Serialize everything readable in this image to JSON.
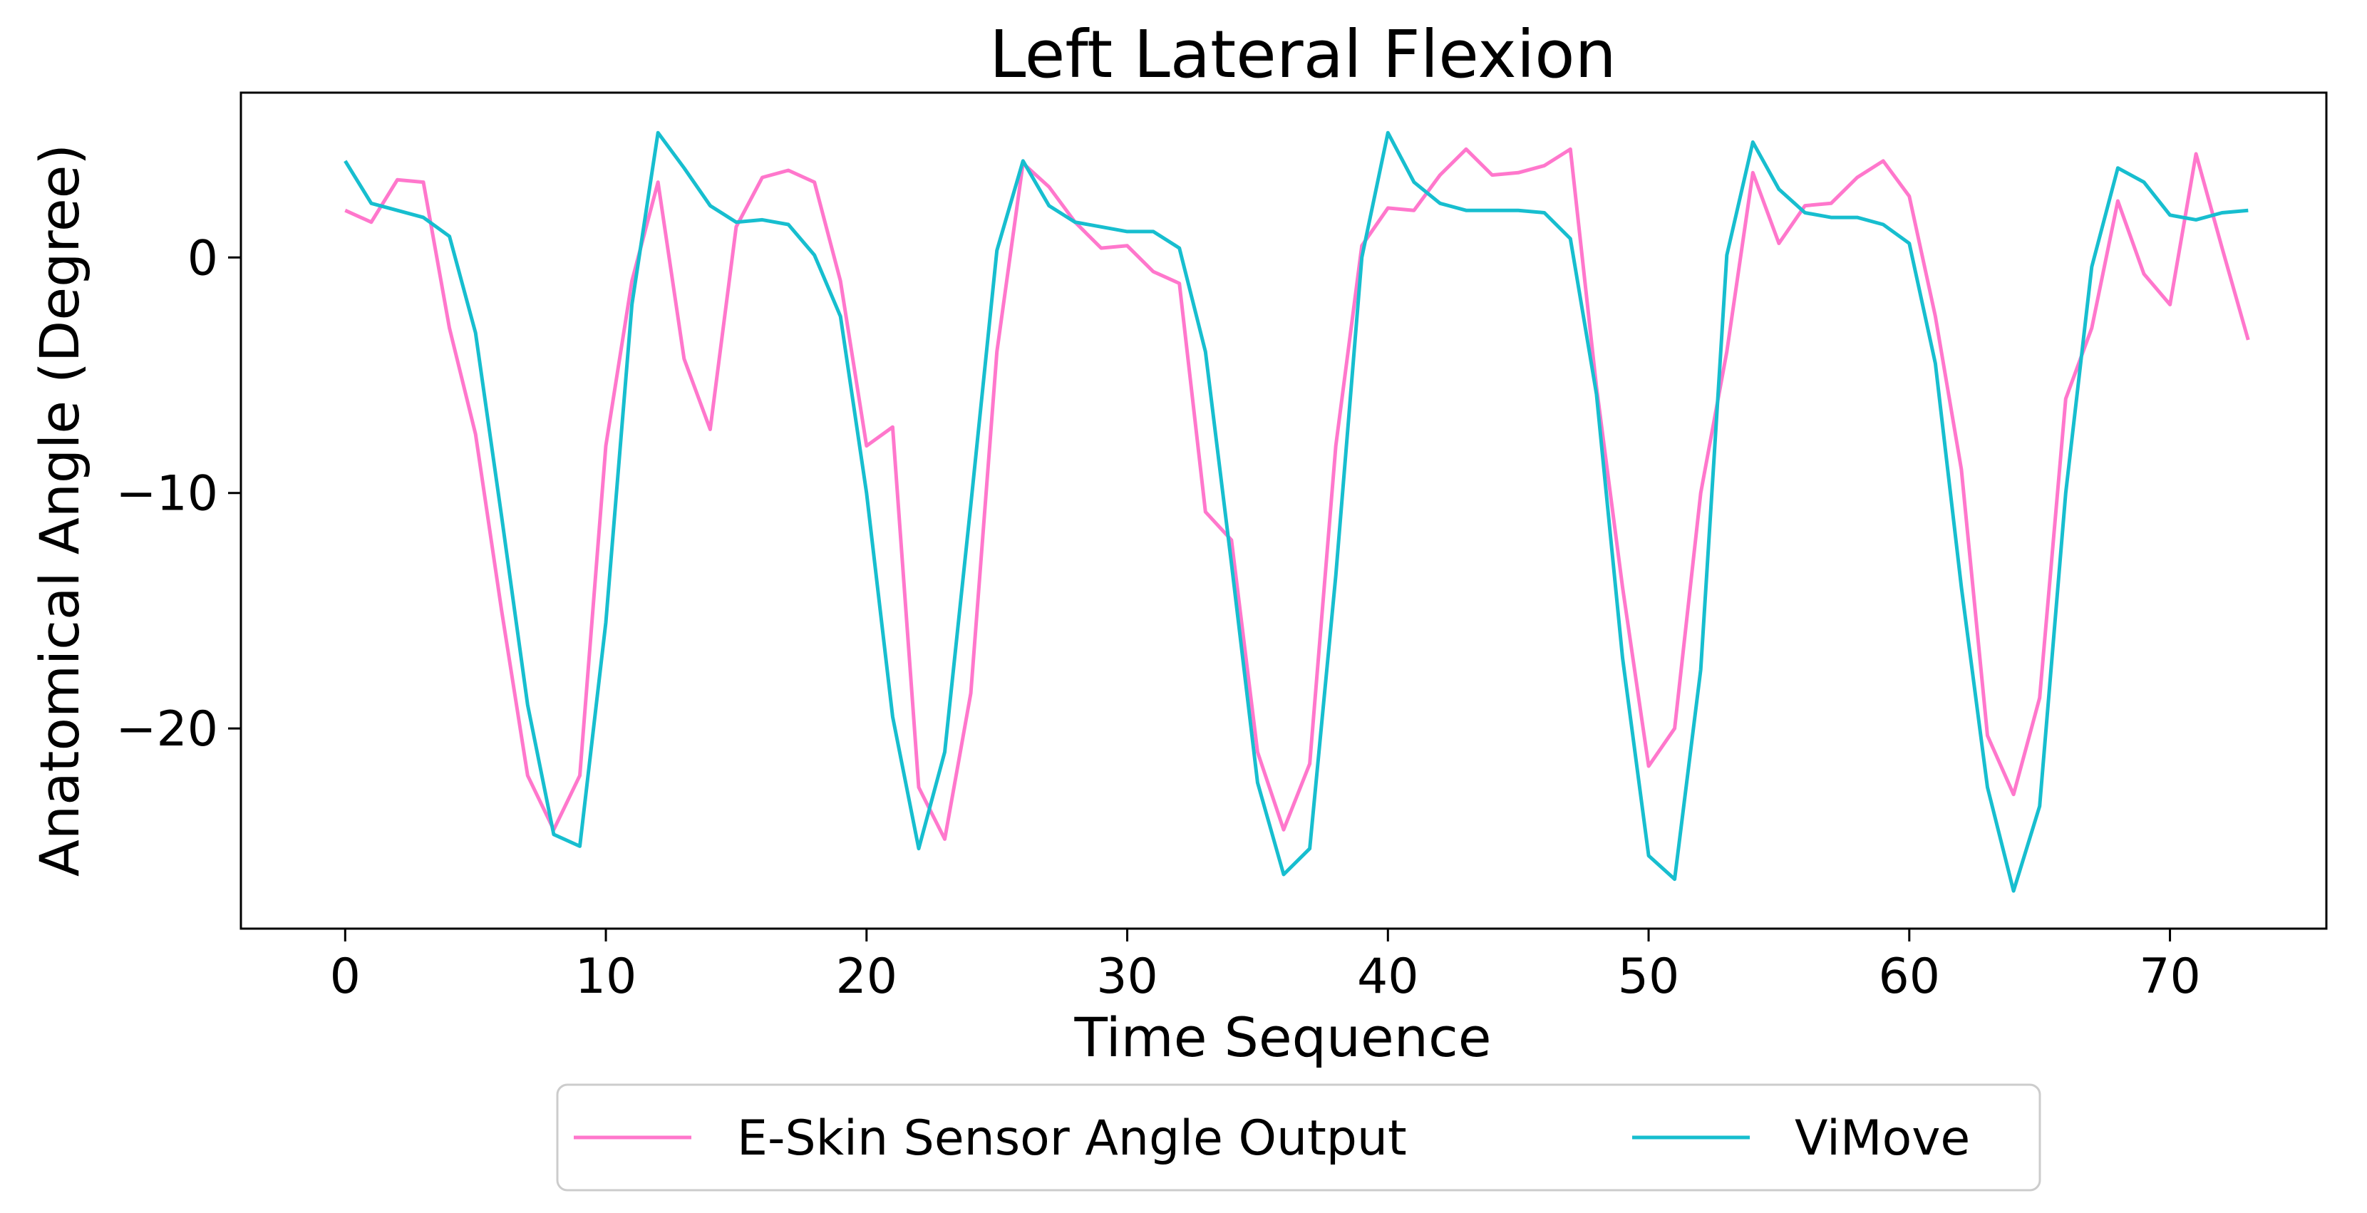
{
  "chart_data": {
    "type": "line",
    "title": "Left Lateral Flexion",
    "xlabel": "Time Sequence",
    "ylabel": "Anatomical Angle (Degree)",
    "xlim": [
      -4,
      76
    ],
    "ylim": [
      -28.5,
      7
    ],
    "xticks": [
      0,
      10,
      20,
      30,
      40,
      50,
      60,
      70
    ],
    "yticks": [
      -20,
      -10,
      0
    ],
    "ytick_labels": [
      "−20",
      "−10",
      "0"
    ],
    "grid": false,
    "legend": {
      "placement": "bottom-center-outside",
      "ncol": 2
    },
    "series": [
      {
        "name": "E-Skin Sensor Angle Output",
        "color": "#ff77cc",
        "x": [
          0,
          1,
          2,
          3,
          4,
          5,
          6,
          7,
          8,
          9,
          10,
          11,
          12,
          13,
          14,
          15,
          16,
          17,
          18,
          19,
          20,
          21,
          22,
          23,
          24,
          25,
          26,
          27,
          28,
          29,
          30,
          31,
          32,
          33,
          34,
          35,
          36,
          37,
          38,
          39,
          40,
          41,
          42,
          43,
          44,
          45,
          46,
          47,
          48,
          49,
          50,
          51,
          52,
          53,
          54,
          55,
          56,
          57,
          58,
          59,
          60,
          61,
          62,
          63,
          64,
          65,
          66,
          67,
          68,
          69,
          70,
          71,
          72,
          73
        ],
        "values": [
          2.0,
          1.5,
          3.3,
          3.2,
          -3.0,
          -7.5,
          -15.0,
          -22.0,
          -24.3,
          -22.0,
          -8.0,
          -1.0,
          3.2,
          -4.3,
          -7.3,
          1.3,
          3.4,
          3.7,
          3.2,
          -1.0,
          -8.0,
          -7.2,
          -22.5,
          -24.7,
          -18.5,
          -4.0,
          4.0,
          3.0,
          1.5,
          0.4,
          0.5,
          -0.6,
          -1.1,
          -10.8,
          -12.0,
          -21.0,
          -24.3,
          -21.5,
          -8.0,
          0.5,
          2.1,
          2.0,
          3.5,
          4.6,
          3.5,
          3.6,
          3.9,
          4.6,
          -5.5,
          -14.0,
          -21.6,
          -20.0,
          -10.0,
          -4.0,
          3.6,
          0.6,
          2.2,
          2.3,
          3.4,
          4.1,
          2.6,
          -2.5,
          -9.0,
          -20.3,
          -22.8,
          -18.7,
          -6.0,
          -3.0,
          2.4,
          -0.7,
          -2.0,
          4.4,
          0.4,
          -3.5
        ]
      },
      {
        "name": "ViMove",
        "color": "#17becf",
        "x": [
          0,
          1,
          2,
          3,
          4,
          5,
          6,
          7,
          8,
          9,
          10,
          11,
          12,
          13,
          14,
          15,
          16,
          17,
          18,
          19,
          20,
          21,
          22,
          23,
          24,
          25,
          26,
          27,
          28,
          29,
          30,
          31,
          32,
          33,
          34,
          35,
          36,
          37,
          38,
          39,
          40,
          41,
          42,
          43,
          44,
          45,
          46,
          47,
          48,
          49,
          50,
          51,
          52,
          53,
          54,
          55,
          56,
          57,
          58,
          59,
          60,
          61,
          62,
          63,
          64,
          65,
          66,
          67,
          68,
          69,
          70,
          71,
          72,
          73
        ],
        "values": [
          4.1,
          2.3,
          2.0,
          1.7,
          0.9,
          -3.2,
          -11.0,
          -19.0,
          -24.5,
          -25.0,
          -15.5,
          -2.0,
          5.3,
          3.8,
          2.2,
          1.5,
          1.6,
          1.4,
          0.1,
          -2.5,
          -10.0,
          -19.5,
          -25.1,
          -21.0,
          -10.5,
          0.3,
          4.1,
          2.2,
          1.5,
          1.3,
          1.1,
          1.1,
          0.4,
          -4.0,
          -13.0,
          -22.3,
          -26.2,
          -25.1,
          -13.5,
          0.0,
          5.3,
          3.2,
          2.3,
          2.0,
          2.0,
          2.0,
          1.9,
          0.8,
          -5.8,
          -17.0,
          -25.4,
          -26.4,
          -17.5,
          0.1,
          4.9,
          2.9,
          1.9,
          1.7,
          1.7,
          1.4,
          0.6,
          -4.5,
          -14.0,
          -22.5,
          -26.9,
          -23.3,
          -10.0,
          -0.4,
          3.8,
          3.2,
          1.8,
          1.6,
          1.9,
          2.0
        ]
      }
    ]
  }
}
